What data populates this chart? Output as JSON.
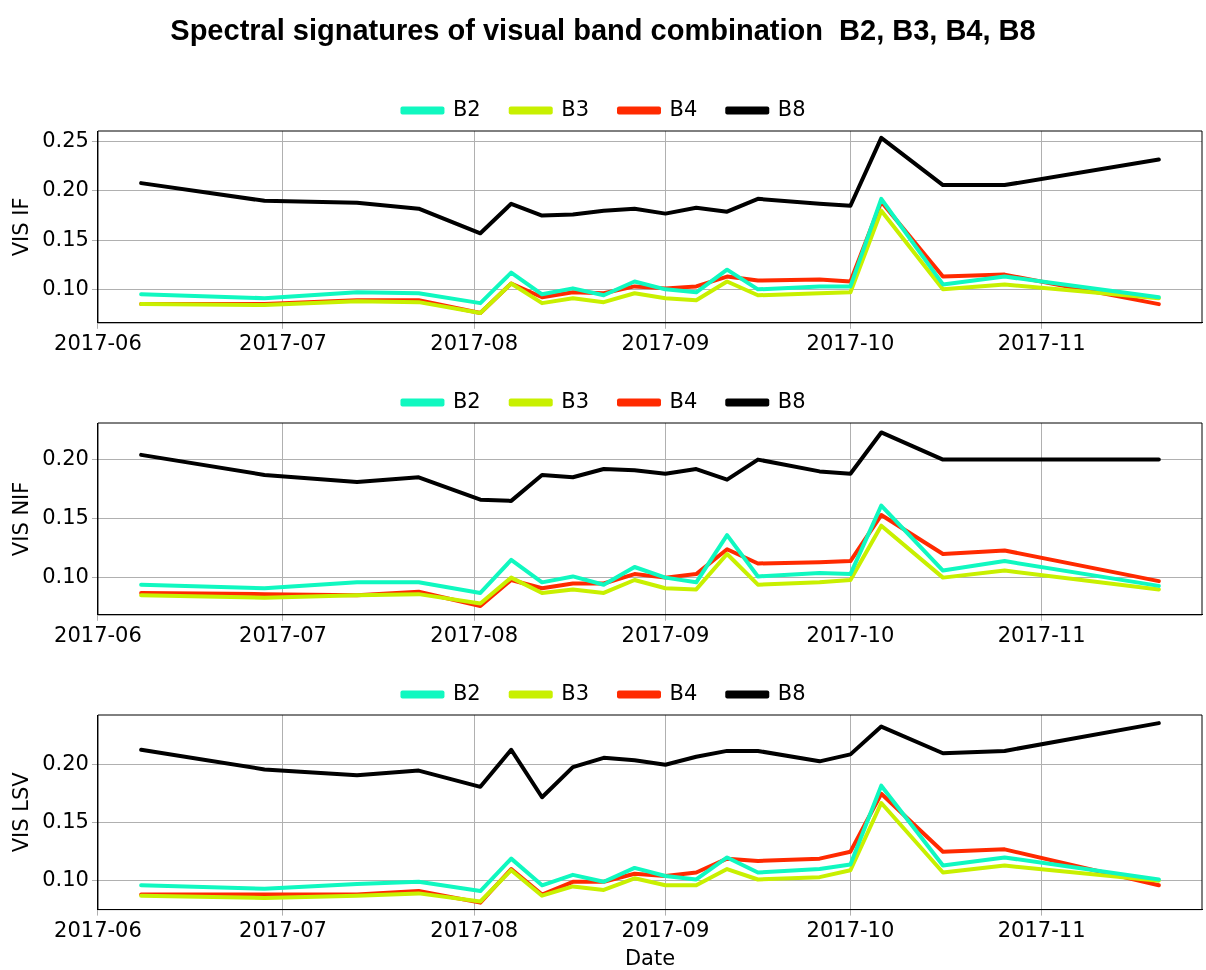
{
  "chart_data": [
    {
      "type": "line",
      "title": "Spectral signatures of visual band combination  B2, B3, B4, B8",
      "ylabel": "VIS IF",
      "x": [
        "2017-06-08",
        "2017-06-28",
        "2017-07-13",
        "2017-07-23",
        "2017-08-02",
        "2017-08-07",
        "2017-08-12",
        "2017-08-17",
        "2017-08-22",
        "2017-08-27",
        "2017-09-01",
        "2017-09-06",
        "2017-09-11",
        "2017-09-16",
        "2017-09-26",
        "2017-10-01",
        "2017-10-06",
        "2017-10-16",
        "2017-10-26",
        "2017-11-20"
      ],
      "series": [
        {
          "name": "B2",
          "color": "#10f8c0",
          "values": [
            0.095,
            0.091,
            0.097,
            0.096,
            0.086,
            0.117,
            0.095,
            0.101,
            0.094,
            0.108,
            0.1,
            0.097,
            0.12,
            0.1,
            0.103,
            0.103,
            0.192,
            0.105,
            0.113,
            0.092
          ]
        },
        {
          "name": "B3",
          "color": "#c8f000",
          "values": [
            0.085,
            0.084,
            0.088,
            0.087,
            0.076,
            0.106,
            0.086,
            0.091,
            0.087,
            0.096,
            0.091,
            0.089,
            0.108,
            0.094,
            0.096,
            0.097,
            0.18,
            0.1,
            0.105,
            0.091
          ]
        },
        {
          "name": "B4",
          "color": "#ff2a00",
          "values": [
            0.085,
            0.085,
            0.089,
            0.089,
            0.076,
            0.106,
            0.092,
            0.097,
            0.096,
            0.103,
            0.101,
            0.103,
            0.113,
            0.109,
            0.11,
            0.108,
            0.189,
            0.113,
            0.115,
            0.085
          ]
        },
        {
          "name": "B8",
          "color": "#000000",
          "values": [
            0.208,
            0.19,
            0.188,
            0.182,
            0.157,
            0.187,
            0.175,
            0.176,
            0.18,
            0.182,
            0.177,
            0.183,
            0.179,
            0.192,
            0.187,
            0.185,
            0.254,
            0.206,
            0.206,
            0.232
          ]
        }
      ],
      "xlim": [
        "2017-06-01",
        "2017-11-27"
      ],
      "xticks": [
        "2017-06",
        "2017-07",
        "2017-08",
        "2017-09",
        "2017-10",
        "2017-11"
      ],
      "ylim": [
        0.066,
        0.261
      ],
      "yticks": [
        {
          "value": 0.1,
          "label": "0.10"
        },
        {
          "value": 0.15,
          "label": "0.15"
        },
        {
          "value": 0.2,
          "label": "0.20"
        },
        {
          "value": 0.25,
          "label": "0.25"
        }
      ],
      "grid": true,
      "legend": "top",
      "marker": "none",
      "line_style": "solid"
    },
    {
      "type": "line",
      "ylabel": "VIS NIF",
      "x": [
        "2017-06-08",
        "2017-06-28",
        "2017-07-13",
        "2017-07-23",
        "2017-08-02",
        "2017-08-07",
        "2017-08-12",
        "2017-08-17",
        "2017-08-22",
        "2017-08-27",
        "2017-09-01",
        "2017-09-06",
        "2017-09-11",
        "2017-09-16",
        "2017-09-26",
        "2017-10-01",
        "2017-10-06",
        "2017-10-16",
        "2017-10-26",
        "2017-11-20"
      ],
      "series": [
        {
          "name": "B2",
          "color": "#10f8c0",
          "values": [
            0.094,
            0.091,
            0.096,
            0.096,
            0.087,
            0.115,
            0.096,
            0.101,
            0.094,
            0.109,
            0.1,
            0.096,
            0.136,
            0.101,
            0.104,
            0.103,
            0.161,
            0.106,
            0.114,
            0.093
          ]
        },
        {
          "name": "B3",
          "color": "#c8f000",
          "values": [
            0.085,
            0.083,
            0.085,
            0.086,
            0.078,
            0.1,
            0.087,
            0.09,
            0.087,
            0.098,
            0.091,
            0.09,
            0.12,
            0.094,
            0.096,
            0.098,
            0.144,
            0.1,
            0.106,
            0.09
          ]
        },
        {
          "name": "B4",
          "color": "#ff2a00",
          "values": [
            0.087,
            0.086,
            0.085,
            0.088,
            0.076,
            0.098,
            0.091,
            0.095,
            0.095,
            0.103,
            0.1,
            0.103,
            0.124,
            0.112,
            0.113,
            0.114,
            0.153,
            0.12,
            0.123,
            0.097
          ]
        },
        {
          "name": "B8",
          "color": "#000000",
          "values": [
            0.204,
            0.187,
            0.181,
            0.185,
            0.166,
            0.165,
            0.187,
            0.185,
            0.192,
            0.191,
            0.188,
            0.192,
            0.183,
            0.2,
            0.19,
            0.188,
            0.223,
            0.2,
            0.2,
            0.2
          ]
        }
      ],
      "xlim": [
        "2017-06-01",
        "2017-11-27"
      ],
      "xticks": [
        "2017-06",
        "2017-07",
        "2017-08",
        "2017-09",
        "2017-10",
        "2017-11"
      ],
      "ylim": [
        0.0685,
        0.231
      ],
      "yticks": [
        {
          "value": 0.1,
          "label": "0.10"
        },
        {
          "value": 0.15,
          "label": "0.15"
        },
        {
          "value": 0.2,
          "label": "0.20"
        }
      ],
      "grid": true,
      "legend": "top",
      "marker": "none",
      "line_style": "solid"
    },
    {
      "type": "line",
      "ylabel": "VIS LSV",
      "xlabel": "Date",
      "x": [
        "2017-06-08",
        "2017-06-28",
        "2017-07-13",
        "2017-07-23",
        "2017-08-02",
        "2017-08-07",
        "2017-08-12",
        "2017-08-17",
        "2017-08-22",
        "2017-08-27",
        "2017-09-01",
        "2017-09-06",
        "2017-09-11",
        "2017-09-16",
        "2017-09-26",
        "2017-10-01",
        "2017-10-06",
        "2017-10-16",
        "2017-10-26",
        "2017-11-20"
      ],
      "series": [
        {
          "name": "B2",
          "color": "#10f8c0",
          "values": [
            0.096,
            0.093,
            0.097,
            0.099,
            0.091,
            0.119,
            0.096,
            0.105,
            0.099,
            0.111,
            0.104,
            0.101,
            0.12,
            0.107,
            0.11,
            0.114,
            0.182,
            0.113,
            0.12,
            0.101
          ]
        },
        {
          "name": "B3",
          "color": "#c8f000",
          "values": [
            0.087,
            0.085,
            0.087,
            0.089,
            0.082,
            0.109,
            0.087,
            0.095,
            0.092,
            0.102,
            0.096,
            0.096,
            0.11,
            0.101,
            0.103,
            0.109,
            0.167,
            0.107,
            0.113,
            0.1
          ]
        },
        {
          "name": "B4",
          "color": "#ff2a00",
          "values": [
            0.088,
            0.088,
            0.088,
            0.091,
            0.081,
            0.11,
            0.088,
            0.099,
            0.099,
            0.106,
            0.104,
            0.107,
            0.119,
            0.117,
            0.119,
            0.125,
            0.175,
            0.125,
            0.127,
            0.096
          ]
        },
        {
          "name": "B8",
          "color": "#000000",
          "values": [
            0.213,
            0.196,
            0.191,
            0.195,
            0.181,
            0.213,
            0.172,
            0.198,
            0.206,
            0.204,
            0.2,
            0.207,
            0.212,
            0.212,
            0.203,
            0.209,
            0.233,
            0.21,
            0.212,
            0.236
          ]
        }
      ],
      "xlim": [
        "2017-06-01",
        "2017-11-27"
      ],
      "xticks": [
        "2017-06",
        "2017-07",
        "2017-08",
        "2017-09",
        "2017-10",
        "2017-11"
      ],
      "ylim": [
        0.075,
        0.243
      ],
      "yticks": [
        {
          "value": 0.1,
          "label": "0.10"
        },
        {
          "value": 0.15,
          "label": "0.15"
        },
        {
          "value": 0.2,
          "label": "0.20"
        }
      ],
      "grid": true,
      "legend": "top",
      "marker": "none",
      "line_style": "solid"
    }
  ]
}
